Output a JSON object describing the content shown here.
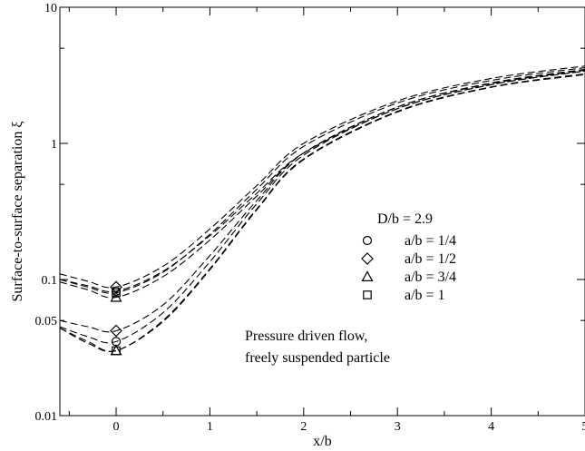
{
  "chart_data": {
    "type": "line",
    "xlabel": "x/b",
    "ylabel": "Surface-to-surface separation ξ",
    "xlim": [
      -0.6,
      5.0
    ],
    "ylim": [
      0.01,
      10
    ],
    "yscale": "log",
    "grid": false,
    "x_ticks": [
      0,
      1,
      2,
      3,
      4,
      5
    ],
    "x_tick_labels": [
      "0",
      "1",
      "2",
      "3",
      "4",
      "5"
    ],
    "y_ticks": [
      0.01,
      0.05,
      0.1,
      1,
      10
    ],
    "y_tick_labels": [
      "0.01",
      "0.05",
      "0.1",
      "1",
      "10"
    ],
    "legend": {
      "title": "D/b = 2.9",
      "placement": "center-right",
      "entries": [
        {
          "label": "a/b = 1/4",
          "marker": "circle"
        },
        {
          "label": "a/b = 1/2",
          "marker": "diamond"
        },
        {
          "label": "a/b = 3/4",
          "marker": "triangle"
        },
        {
          "label": "a/b = 1",
          "marker": "square"
        }
      ]
    },
    "annotation": [
      "Pressure driven flow,",
      "freely suspended particle"
    ],
    "line_style": "dashed",
    "series": [
      {
        "marker": "circle",
        "x": [
          -0.6,
          -0.3,
          0,
          0.5,
          1.0,
          1.5,
          2.0,
          3.0,
          4.0,
          5.0
        ],
        "y": [
          0.045,
          0.038,
          0.035,
          0.057,
          0.135,
          0.36,
          0.82,
          1.8,
          2.7,
          3.4
        ]
      },
      {
        "marker": "diamond",
        "x": [
          -0.6,
          -0.3,
          0,
          0.5,
          1.0,
          1.5,
          2.0,
          3.0,
          4.0,
          5.0
        ],
        "y": [
          0.05,
          0.045,
          0.042,
          0.065,
          0.15,
          0.38,
          0.85,
          1.85,
          2.75,
          3.45
        ]
      },
      {
        "marker": "triangle",
        "x": [
          -0.6,
          -0.3,
          0,
          0.5,
          1.0,
          1.5,
          2.0,
          3.0,
          4.0,
          5.0
        ],
        "y": [
          0.044,
          0.035,
          0.03,
          0.05,
          0.12,
          0.33,
          0.77,
          1.72,
          2.6,
          3.25
        ]
      },
      {
        "marker": "square",
        "x": [
          -0.6,
          -0.3,
          0,
          0.5,
          1.0,
          1.5,
          2.0,
          3.0,
          4.0,
          5.0
        ],
        "y": [
          0.044,
          0.034,
          0.03,
          0.049,
          0.118,
          0.325,
          0.76,
          1.7,
          2.58,
          3.2
        ]
      },
      {
        "marker": "circle",
        "x": [
          -0.6,
          -0.3,
          0,
          0.5,
          1.0,
          1.5,
          2.0,
          3.0,
          4.0,
          5.0
        ],
        "y": [
          0.1,
          0.09,
          0.082,
          0.115,
          0.21,
          0.43,
          0.85,
          1.8,
          2.7,
          3.4
        ]
      },
      {
        "marker": "diamond",
        "x": [
          -0.6,
          -0.3,
          0,
          0.5,
          1.0,
          1.5,
          2.0,
          3.0,
          4.0,
          5.0
        ],
        "y": [
          0.11,
          0.097,
          0.088,
          0.125,
          0.235,
          0.49,
          1.0,
          2.05,
          3.0,
          3.7
        ]
      },
      {
        "marker": "triangle",
        "x": [
          -0.6,
          -0.3,
          0,
          0.5,
          1.0,
          1.5,
          2.0,
          3.0,
          4.0,
          5.0
        ],
        "y": [
          0.096,
          0.084,
          0.074,
          0.105,
          0.195,
          0.41,
          0.85,
          1.85,
          2.78,
          3.5
        ]
      },
      {
        "marker": "square",
        "x": [
          -0.6,
          -0.3,
          0,
          0.5,
          1.0,
          1.5,
          2.0,
          3.0,
          4.0,
          5.0
        ],
        "y": [
          0.1,
          0.088,
          0.08,
          0.113,
          0.215,
          0.46,
          0.95,
          1.98,
          2.9,
          3.6
        ]
      }
    ]
  }
}
